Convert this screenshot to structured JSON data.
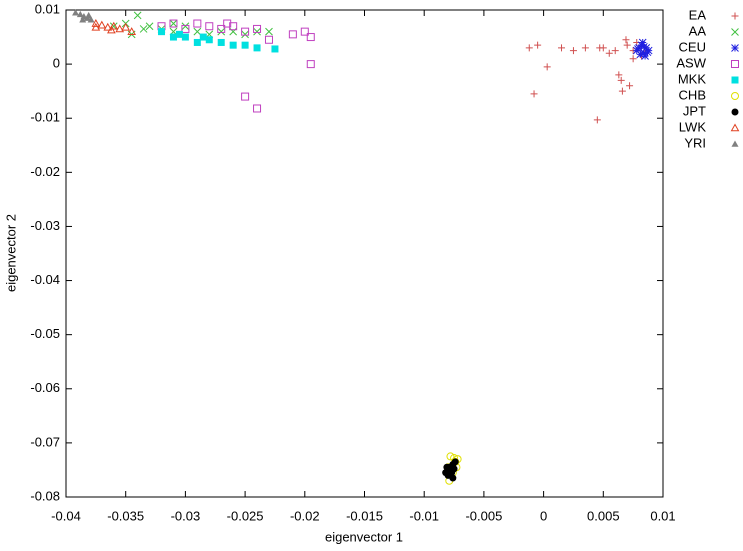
{
  "chart_data": {
    "type": "scatter",
    "x_label": "eigenvector 1",
    "y_label": "eigenvector 2",
    "xlim": [
      -0.04,
      0.01
    ],
    "ylim": [
      -0.08,
      0.01
    ],
    "xticks": [
      -0.04,
      -0.035,
      -0.03,
      -0.025,
      -0.02,
      -0.015,
      -0.01,
      -0.005,
      0,
      0.005,
      0.01
    ],
    "yticks": [
      0.01,
      0,
      -0.01,
      -0.02,
      -0.03,
      -0.04,
      -0.05,
      -0.06,
      -0.07,
      -0.08
    ],
    "grid": false,
    "legend": "outside-right",
    "series": [
      {
        "name": "EA",
        "color": "#d05050",
        "marker": "plus",
        "x": [
          -0.0012,
          -0.0005,
          0.0003,
          0.0015,
          0.0025,
          0.0035,
          0.0045,
          0.005,
          0.0055,
          0.006,
          0.0065,
          0.007,
          0.0075,
          0.008,
          0.0085,
          0.0082,
          0.0078,
          0.0066,
          0.0072,
          0.0047,
          -0.0008,
          0.0063,
          0.0075,
          0.0069
        ],
        "values": [
          0.003,
          0.0035,
          -0.0005,
          0.003,
          0.0025,
          0.003,
          -0.0103,
          0.003,
          0.002,
          0.0025,
          -0.003,
          0.0035,
          0.0025,
          0.003,
          0.002,
          0.0015,
          0.004,
          -0.005,
          -0.004,
          0.003,
          -0.0055,
          -0.002,
          0.001,
          0.0045
        ]
      },
      {
        "name": "AA",
        "color": "#40c040",
        "marker": "cross",
        "x": [
          -0.036,
          -0.035,
          -0.034,
          -0.0335,
          -0.033,
          -0.032,
          -0.031,
          -0.03,
          -0.029,
          -0.028,
          -0.027,
          -0.026,
          -0.025,
          -0.024,
          -0.023,
          -0.0345,
          -0.031
        ],
        "values": [
          0.007,
          0.0075,
          0.009,
          0.0065,
          0.007,
          0.0065,
          0.006,
          0.007,
          0.006,
          0.0055,
          0.006,
          0.006,
          0.0055,
          0.006,
          0.006,
          0.0055,
          0.0075
        ]
      },
      {
        "name": "CEU",
        "color": "#2020e0",
        "marker": "star",
        "x": [
          0.0078,
          0.008,
          0.0082,
          0.0084,
          0.0086,
          0.0088,
          0.0081,
          0.0083,
          0.0085,
          0.0079,
          0.0087,
          0.0084
        ],
        "values": [
          0.0025,
          0.003,
          0.0035,
          0.002,
          0.003,
          0.0025,
          0.0018,
          0.004,
          0.0015,
          0.0028,
          0.0022,
          0.0032
        ]
      },
      {
        "name": "ASW",
        "color": "#c040c0",
        "marker": "square-open",
        "x": [
          -0.032,
          -0.031,
          -0.029,
          -0.028,
          -0.027,
          -0.026,
          -0.025,
          -0.024,
          -0.023,
          -0.021,
          -0.02,
          -0.0195,
          -0.0195,
          -0.025,
          -0.024,
          -0.03,
          -0.0265
        ],
        "values": [
          0.007,
          0.0075,
          0.0075,
          0.007,
          0.0065,
          0.007,
          0.006,
          0.0065,
          0.0045,
          0.0055,
          0.006,
          0.005,
          0,
          -0.006,
          -0.0082,
          0.0065,
          0.0075
        ]
      },
      {
        "name": "MKK",
        "color": "#00e0e0",
        "marker": "square",
        "x": [
          -0.032,
          -0.031,
          -0.03,
          -0.029,
          -0.028,
          -0.027,
          -0.026,
          -0.025,
          -0.024,
          -0.0225,
          -0.0305,
          -0.0285
        ],
        "values": [
          0.006,
          0.005,
          0.005,
          0.004,
          0.0045,
          0.004,
          0.0035,
          0.0035,
          0.003,
          0.0028,
          0.0055,
          0.005
        ]
      },
      {
        "name": "CHB",
        "color": "#e0e000",
        "marker": "circle-open",
        "x": [
          -0.0078,
          -0.0075,
          -0.0072,
          -0.008,
          -0.0076,
          -0.0073,
          -0.0079,
          -0.0074
        ],
        "values": [
          -0.0725,
          -0.0728,
          -0.073,
          -0.0745,
          -0.0755,
          -0.0745,
          -0.077,
          -0.0735
        ]
      },
      {
        "name": "JPT",
        "color": "#000000",
        "marker": "circle",
        "x": [
          -0.0082,
          -0.008,
          -0.0078,
          -0.0076,
          -0.0074,
          -0.0079,
          -0.0077,
          -0.0075,
          -0.0081,
          -0.0076
        ],
        "values": [
          -0.0755,
          -0.076,
          -0.075,
          -0.074,
          -0.0735,
          -0.0745,
          -0.0755,
          -0.0748,
          -0.0745,
          -0.0765
        ]
      },
      {
        "name": "LWK",
        "color": "#e04020",
        "marker": "triangle-open",
        "x": [
          -0.0375,
          -0.037,
          -0.0365,
          -0.036,
          -0.0355,
          -0.035,
          -0.0345,
          -0.0375,
          -0.0362
        ],
        "values": [
          0.0075,
          0.0072,
          0.0068,
          0.007,
          0.0065,
          0.0068,
          0.006,
          0.0068,
          0.0063
        ]
      },
      {
        "name": "YRI",
        "color": "#808080",
        "marker": "triangle",
        "x": [
          -0.0392,
          -0.0388,
          -0.0385,
          -0.0382,
          -0.0379,
          -0.0386,
          -0.0381
        ],
        "values": [
          0.0095,
          0.0092,
          0.0088,
          0.0085,
          0.0082,
          0.0082,
          0.009
        ]
      }
    ]
  }
}
